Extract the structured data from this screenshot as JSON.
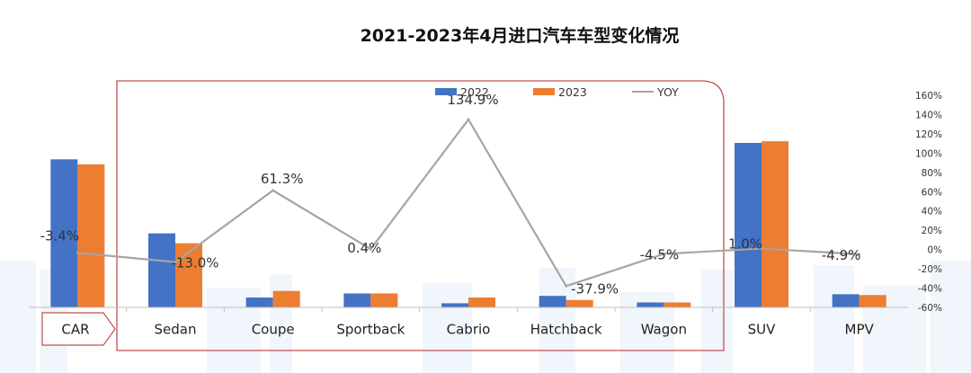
{
  "title": "2021-2023年4月进口汽车车型变化情况",
  "colors": {
    "series_2022": "#4472C4",
    "series_2023": "#ED7D31",
    "yoy_line": "#A5A5A5",
    "highlight_frame": "#C0504D",
    "background_bars": "#EAF2FA"
  },
  "chart_data": {
    "type": "bar",
    "categories": [
      "CAR",
      "Sedan",
      "Coupe",
      "Sportback",
      "Cabrio",
      "Hatchback",
      "Wagon",
      "SUV",
      "MPV"
    ],
    "series": [
      {
        "name": "2022",
        "type": "bar",
        "axis": "left",
        "values": [
          180,
          90,
          12,
          17,
          5,
          14,
          6,
          200,
          16
        ]
      },
      {
        "name": "2023",
        "type": "bar",
        "axis": "left",
        "values": [
          174,
          78,
          20,
          17,
          12,
          9,
          6,
          202,
          15
        ]
      },
      {
        "name": "YOY",
        "type": "line",
        "axis": "right",
        "values": [
          -3.4,
          -13.0,
          61.3,
          0.4,
          134.9,
          -37.9,
          -4.5,
          1.0,
          -4.9
        ]
      }
    ],
    "yoy_labels": [
      "-3.4%",
      "-13.0%",
      "61.3%",
      "0.4%",
      "134.9%",
      "-37.9%",
      "-4.5%",
      "1.0%",
      "-4.9%"
    ],
    "y2_ticks": [
      "160%",
      "140%",
      "120%",
      "100%",
      "80%",
      "60%",
      "40%",
      "20%",
      "0%",
      "-20%",
      "-40%",
      "-60%"
    ],
    "y2lim": [
      -60,
      160
    ],
    "legend": [
      "2022",
      "2023",
      "YOY"
    ],
    "legend_position": "top-center",
    "grid": false
  }
}
